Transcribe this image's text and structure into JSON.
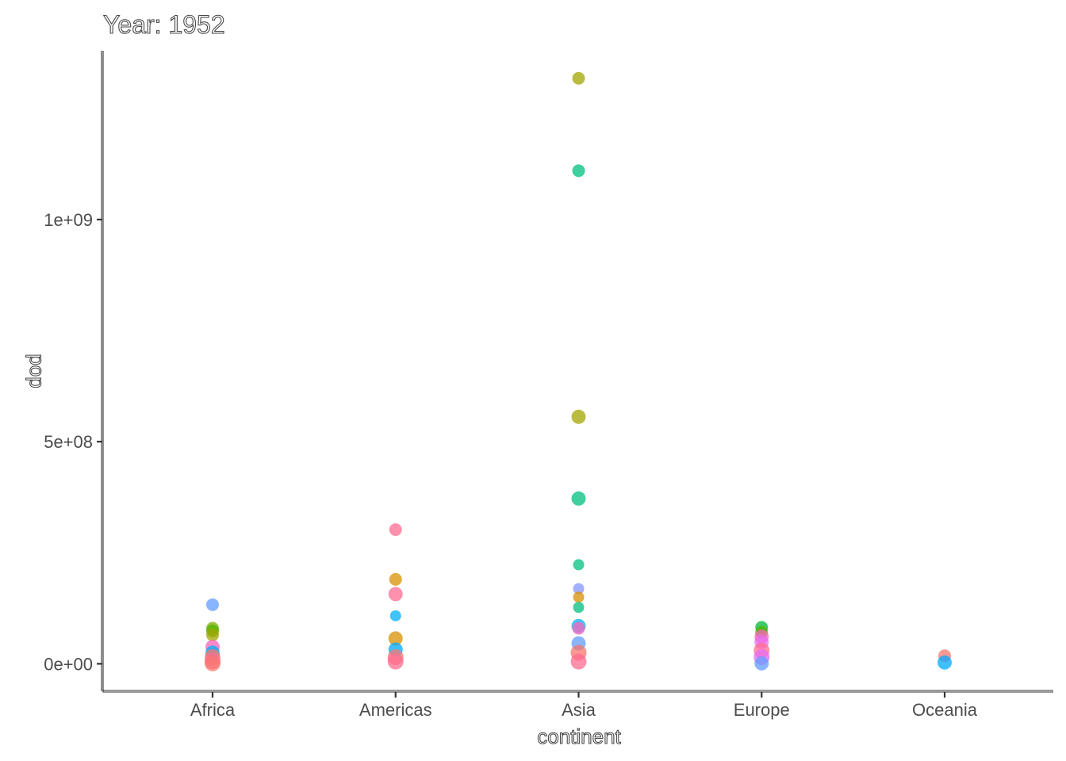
{
  "chart_data": {
    "type": "scatter",
    "title": "Year: 1952",
    "xlabel": "continent",
    "ylabel": "pop",
    "categories": [
      "Africa",
      "Americas",
      "Asia",
      "Europe",
      "Oceania"
    ],
    "ylim": [
      -60000000,
      1380000000
    ],
    "yticks": [
      {
        "value": 0,
        "label": "0e+00"
      },
      {
        "value": 500000000,
        "label": "5e+08"
      },
      {
        "value": 1000000000,
        "label": "1e+09"
      }
    ],
    "grid": false,
    "legend": "none",
    "points": [
      {
        "cat": "Africa",
        "y": 133000000,
        "color": "#619CFF",
        "size": 8
      },
      {
        "cat": "Africa",
        "y": 80000000,
        "color": "#7CAE00",
        "size": 8
      },
      {
        "cat": "Africa",
        "y": 74000000,
        "color": "#53B400",
        "size": 8
      },
      {
        "cat": "Africa",
        "y": 65000000,
        "color": "#A3A500",
        "size": 8
      },
      {
        "cat": "Africa",
        "y": 38000000,
        "color": "#FF62BC",
        "size": 9
      },
      {
        "cat": "Africa",
        "y": 25000000,
        "color": "#00B0F6",
        "size": 9
      },
      {
        "cat": "Africa",
        "y": 15000000,
        "color": "#F8766D",
        "size": 10
      },
      {
        "cat": "Africa",
        "y": 6000000,
        "color": "#FF6C91",
        "size": 10
      },
      {
        "cat": "Africa",
        "y": 1000000,
        "color": "#F8766D",
        "size": 10
      },
      {
        "cat": "Americas",
        "y": 302000000,
        "color": "#FF6C91",
        "size": 8
      },
      {
        "cat": "Americas",
        "y": 190000000,
        "color": "#D89000",
        "size": 8
      },
      {
        "cat": "Americas",
        "y": 157000000,
        "color": "#FF6C91",
        "size": 9
      },
      {
        "cat": "Americas",
        "y": 108000000,
        "color": "#00B0F6",
        "size": 7
      },
      {
        "cat": "Americas",
        "y": 57000000,
        "color": "#D89000",
        "size": 9
      },
      {
        "cat": "Americas",
        "y": 32000000,
        "color": "#00A9FF",
        "size": 9
      },
      {
        "cat": "Americas",
        "y": 15000000,
        "color": "#F8766D",
        "size": 10
      },
      {
        "cat": "Americas",
        "y": 5000000,
        "color": "#FF6C91",
        "size": 10
      },
      {
        "cat": "Asia",
        "y": 1318000000,
        "color": "#A3A500",
        "size": 8
      },
      {
        "cat": "Asia",
        "y": 1110000000,
        "color": "#00BF7D",
        "size": 8
      },
      {
        "cat": "Asia",
        "y": 556000000,
        "color": "#A3A500",
        "size": 9
      },
      {
        "cat": "Asia",
        "y": 372000000,
        "color": "#00BF7D",
        "size": 9
      },
      {
        "cat": "Asia",
        "y": 223000000,
        "color": "#00BF7D",
        "size": 7
      },
      {
        "cat": "Asia",
        "y": 169000000,
        "color": "#8494FF",
        "size": 7
      },
      {
        "cat": "Asia",
        "y": 150000000,
        "color": "#D89000",
        "size": 7
      },
      {
        "cat": "Asia",
        "y": 127000000,
        "color": "#00BF7D",
        "size": 7
      },
      {
        "cat": "Asia",
        "y": 85000000,
        "color": "#00B0F6",
        "size": 9
      },
      {
        "cat": "Asia",
        "y": 80000000,
        "color": "#FF62BC",
        "size": 8
      },
      {
        "cat": "Asia",
        "y": 46000000,
        "color": "#619CFF",
        "size": 9
      },
      {
        "cat": "Asia",
        "y": 25000000,
        "color": "#F8766D",
        "size": 10
      },
      {
        "cat": "Asia",
        "y": 5000000,
        "color": "#FF6C91",
        "size": 10
      },
      {
        "cat": "Europe",
        "y": 82000000,
        "color": "#00BA38",
        "size": 8
      },
      {
        "cat": "Europe",
        "y": 71000000,
        "color": "#53B400",
        "size": 8
      },
      {
        "cat": "Europe",
        "y": 61000000,
        "color": "#FF62BC",
        "size": 9
      },
      {
        "cat": "Europe",
        "y": 49000000,
        "color": "#E76BF3",
        "size": 9
      },
      {
        "cat": "Europe",
        "y": 30000000,
        "color": "#FF6C91",
        "size": 10
      },
      {
        "cat": "Europe",
        "y": 15000000,
        "color": "#E76BF3",
        "size": 10
      },
      {
        "cat": "Europe",
        "y": 1000000,
        "color": "#619CFF",
        "size": 9
      },
      {
        "cat": "Oceania",
        "y": 18000000,
        "color": "#F8766D",
        "size": 8
      },
      {
        "cat": "Oceania",
        "y": 3000000,
        "color": "#00A9FF",
        "size": 9
      }
    ]
  }
}
